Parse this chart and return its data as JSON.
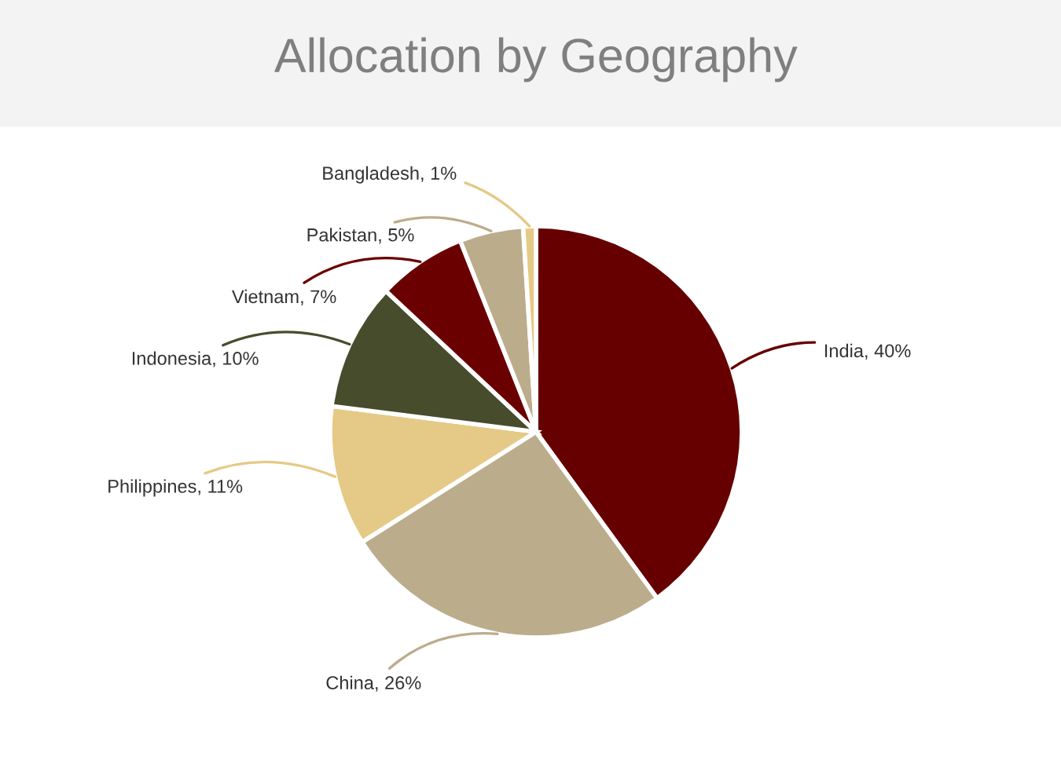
{
  "chart_data": {
    "type": "pie",
    "title": "Allocation by Geography",
    "categories": [
      "India",
      "China",
      "Philippines",
      "Indonesia",
      "Vietnam",
      "Pakistan",
      "Bangladesh"
    ],
    "values": [
      40,
      26,
      11,
      10,
      7,
      5,
      1
    ],
    "value_labels": [
      "40%",
      "26%",
      "11%",
      "10%",
      "7%",
      "5%",
      "1%"
    ],
    "colors": [
      "#660000",
      "#bbad8c",
      "#e5c986",
      "#474c2c",
      "#6b0000",
      "#bbad8c",
      "#e5c986"
    ],
    "legend": false
  }
}
